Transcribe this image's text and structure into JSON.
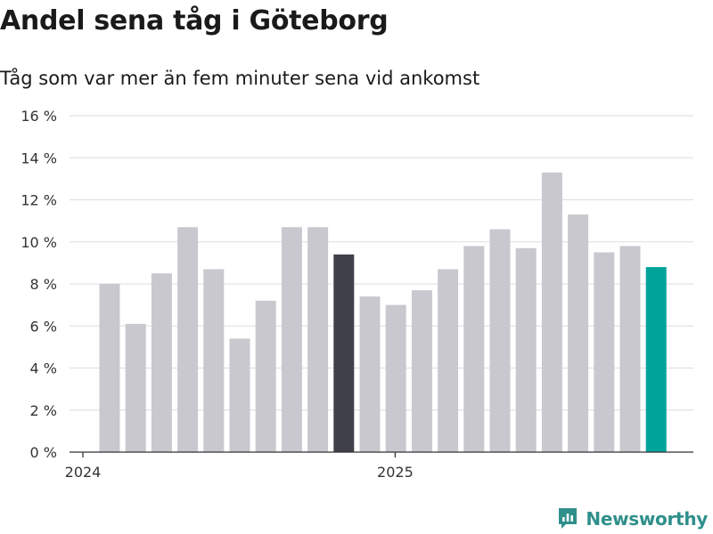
{
  "header": {
    "title": "Andel sena tåg i Göteborg",
    "subtitle": "Tåg som var mer än fem minuter sena vid ankomst"
  },
  "brand": {
    "name": "Newsworthy"
  },
  "chart_data": {
    "type": "bar",
    "title": "Andel sena tåg i Göteborg",
    "subtitle": "Tåg som var mer än fem minuter sena vid ankomst",
    "xlabel": "",
    "ylabel": "",
    "ylim": [
      0,
      16
    ],
    "yticks": [
      0,
      2,
      4,
      6,
      8,
      10,
      12,
      14,
      16
    ],
    "ytick_labels": [
      "0 %",
      "2 %",
      "4 %",
      "6 %",
      "8 %",
      "10 %",
      "12 %",
      "14 %",
      "16 %"
    ],
    "x_tick_labels": [
      {
        "label": "2024",
        "category_index": 0
      },
      {
        "label": "2025",
        "category_index": 12
      }
    ],
    "grid": true,
    "series": [
      {
        "name": "Andel sena tåg",
        "values": [
          8.0,
          6.1,
          8.5,
          10.7,
          8.7,
          5.4,
          7.2,
          10.7,
          10.7,
          9.4,
          7.4,
          7.0,
          7.7,
          8.7,
          9.8,
          10.6,
          9.7,
          13.3,
          11.3,
          9.5,
          9.8,
          8.8
        ]
      }
    ],
    "highlight": [
      {
        "index": 9,
        "color": "#40404b"
      },
      {
        "index": 21,
        "color": "#00a39a"
      }
    ],
    "colors": {
      "bar": "#c9c8cf",
      "axis": "#333333",
      "grid": "#dddddd"
    }
  }
}
